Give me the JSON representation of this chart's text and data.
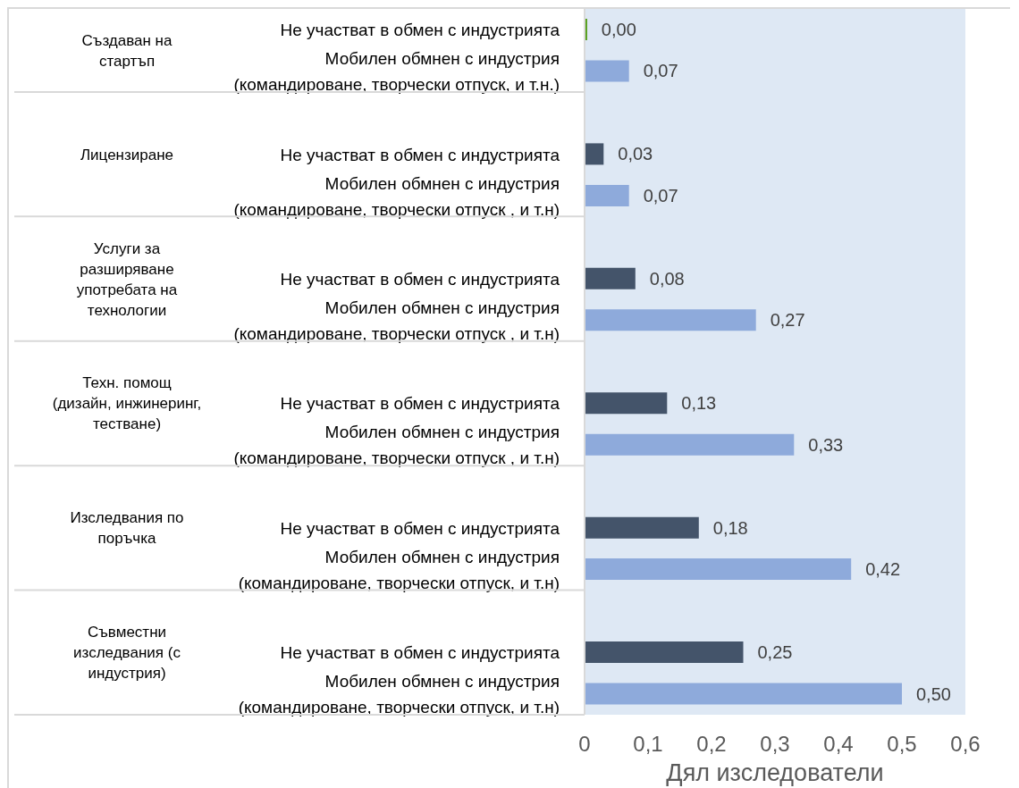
{
  "chart_data": {
    "type": "bar",
    "orientation": "horizontal",
    "categories": [
      "Не участват в обмен с индустрията",
      "Мобилен обмнен с индустрия\n(командироване, творчески отпуск, и т.н.)",
      "Не участват в обмен с индустрията",
      "Мобилен обмнен с индустрия\n(командироване, творчески отпуск , и т.н)",
      "Не участват в обмен с индустрията",
      "Мобилен обмнен с индустрия\n(командироване, творчески отпуск , и т.н)",
      "Не участват в обмен с индустрията",
      "Мобилен обмнен с индустрия\n(командироване, творчески отпуск , и т.н)",
      "Не участват в обмен с индустрията",
      "Мобилен обмнен с индустрия\n(командироване, творчески отпуск, и т.н)",
      "Не участват в обмен с индустрията",
      "Мобилен обмнен с индустрия\n(командироване, творчески отпуск, и т.н)"
    ],
    "values": [
      0.004,
      0.07,
      0.03,
      0.07,
      0.08,
      0.27,
      0.13,
      0.33,
      0.18,
      0.42,
      0.25,
      0.5
    ],
    "colors": [
      "#4e9a0e",
      "#8eaadb",
      "#44546a",
      "#8eaadb",
      "#44546a",
      "#8eaadb",
      "#44546a",
      "#8eaadb",
      "#44546a",
      "#8eaadb",
      "#44546a",
      "#8eaadb"
    ],
    "value_labels": [
      "0,00",
      "0,07",
      "0,03",
      "0,07",
      "0,08",
      "0,27",
      "0,13",
      "0,33",
      "0,18",
      "0,42",
      "0,25",
      "0,50"
    ],
    "xlim": [
      0,
      0.6
    ],
    "xticks": [
      0,
      {
        "value": 0.1,
        "label": "0,1"
      },
      {
        "value": 0.2,
        "label": "0,2"
      },
      {
        "value": 0.3,
        "label": "0,3"
      },
      {
        "value": 0.4,
        "label": "0,4"
      },
      {
        "value": 0.5,
        "label": "0,5"
      },
      {
        "value": 0.6,
        "label": "0,6"
      }
    ],
    "xlabel": "Дял изследователи",
    "annotations": [
      "Създаван на\nстартъп",
      "Лицензиране",
      "Услуги за\nразширяване\nупотребата на\nтехнологии",
      "Техн. помощ\n(дизайн, инжинеринг,\nтестване)",
      "Изследвания по\nпоръчка",
      "Съвместни\nизследвания (с\nиндустрия)"
    ]
  }
}
